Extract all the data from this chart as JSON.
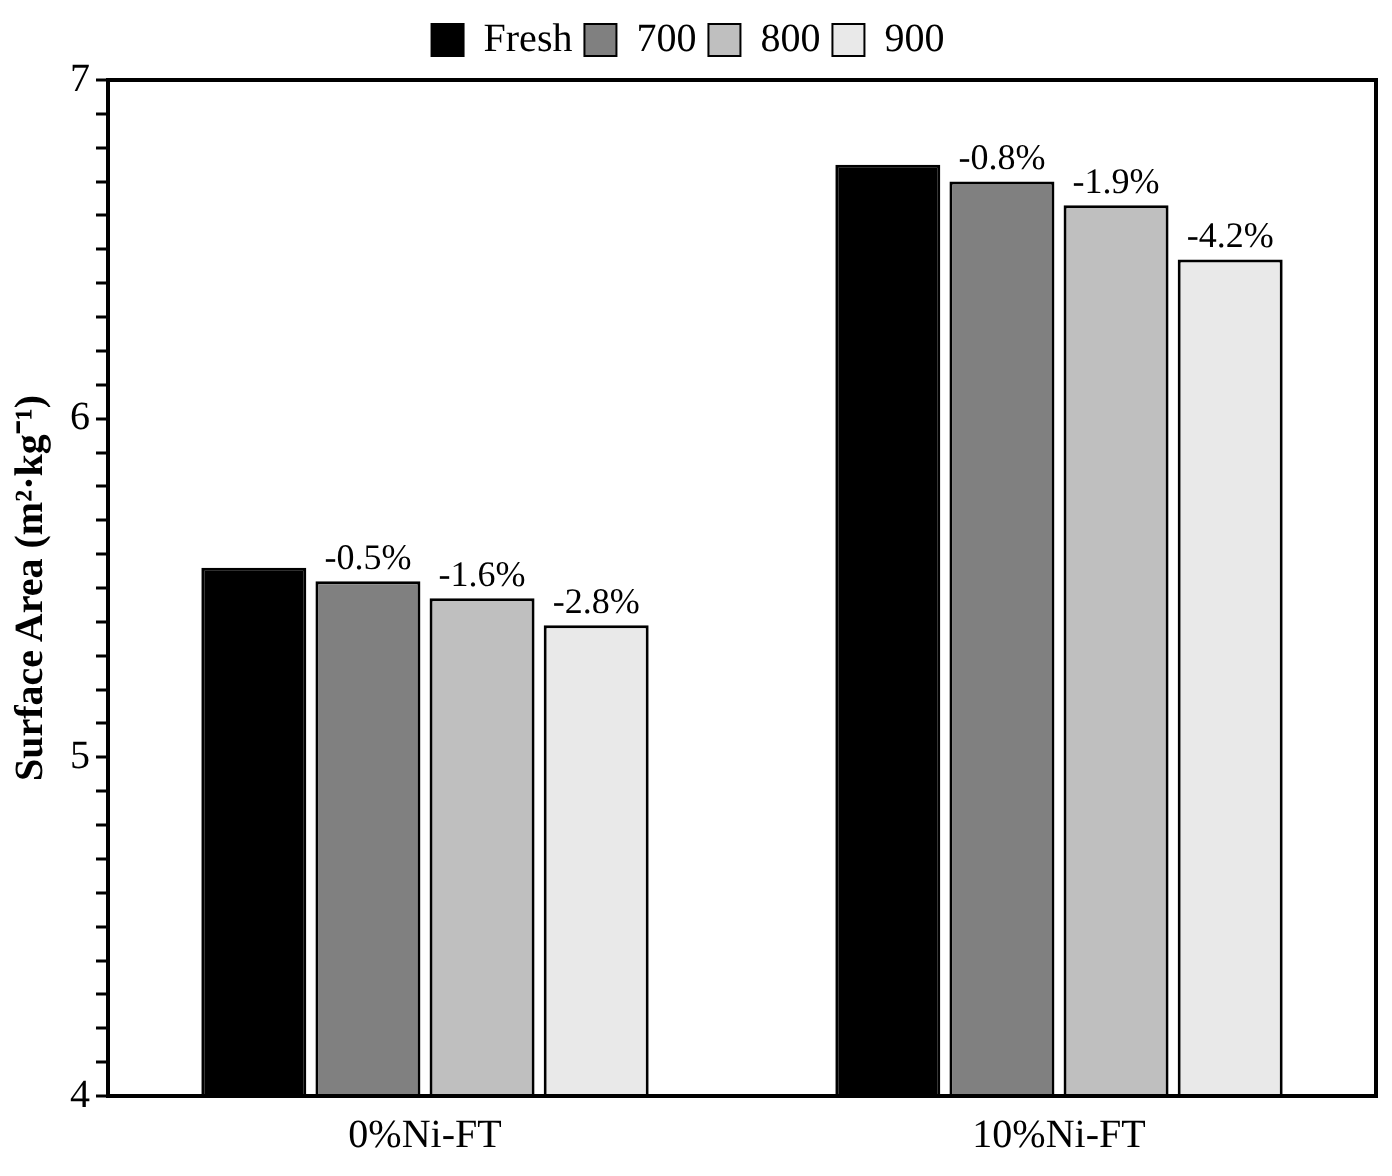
{
  "chart_data": {
    "type": "bar",
    "ylabel": "Surface Area (m²·kg⁻¹)",
    "categories": [
      "0%Ni-FT",
      "10%Ni-FT"
    ],
    "series": [
      {
        "name": "Fresh",
        "color": "#000000",
        "values": [
          5.56,
          6.75
        ]
      },
      {
        "name": "700",
        "color": "#808080",
        "values": [
          5.52,
          6.7
        ]
      },
      {
        "name": "800",
        "color": "#bfbfbf",
        "values": [
          5.47,
          6.63
        ]
      },
      {
        "name": "900",
        "color": "#e9e9e9",
        "values": [
          5.39,
          6.47
        ]
      }
    ],
    "annotations": [
      "-0.5%",
      "-1.6%",
      "-2.8%",
      "-0.8%",
      "-1.9%",
      "-4.2%"
    ],
    "ylim": [
      4,
      7
    ],
    "yticks": [
      4,
      {
        "value": 4.1,
        "label": null
      },
      {
        "value": 4.2,
        "label": null
      },
      {
        "value": 4.3,
        "label": null
      },
      {
        "value": 4.4,
        "label": null
      },
      {
        "value": 4.5,
        "label": null
      },
      {
        "value": 4.6,
        "label": null
      },
      {
        "value": 4.7,
        "label": null
      },
      {
        "value": 4.8,
        "label": null
      },
      {
        "value": 4.9,
        "label": null
      },
      5,
      {
        "value": 5.1,
        "label": null
      },
      {
        "value": 5.2,
        "label": null
      },
      {
        "value": 5.3,
        "label": null
      },
      {
        "value": 5.4,
        "label": null
      },
      {
        "value": 5.5,
        "label": null
      },
      {
        "value": 5.6,
        "label": null
      },
      {
        "value": 5.7,
        "label": null
      },
      {
        "value": 5.8,
        "label": null
      },
      {
        "value": 5.9,
        "label": null
      },
      6,
      {
        "value": 6.1,
        "label": null
      },
      {
        "value": 6.2,
        "label": null
      },
      {
        "value": 6.3,
        "label": null
      },
      {
        "value": 6.4,
        "label": null
      },
      {
        "value": 6.5,
        "label": null
      },
      {
        "value": 6.6,
        "label": null
      },
      {
        "value": 6.7,
        "label": null
      },
      {
        "value": 6.8,
        "label": null
      },
      {
        "value": 6.9,
        "label": null
      },
      7
    ],
    "grid": false,
    "legend": "top"
  }
}
